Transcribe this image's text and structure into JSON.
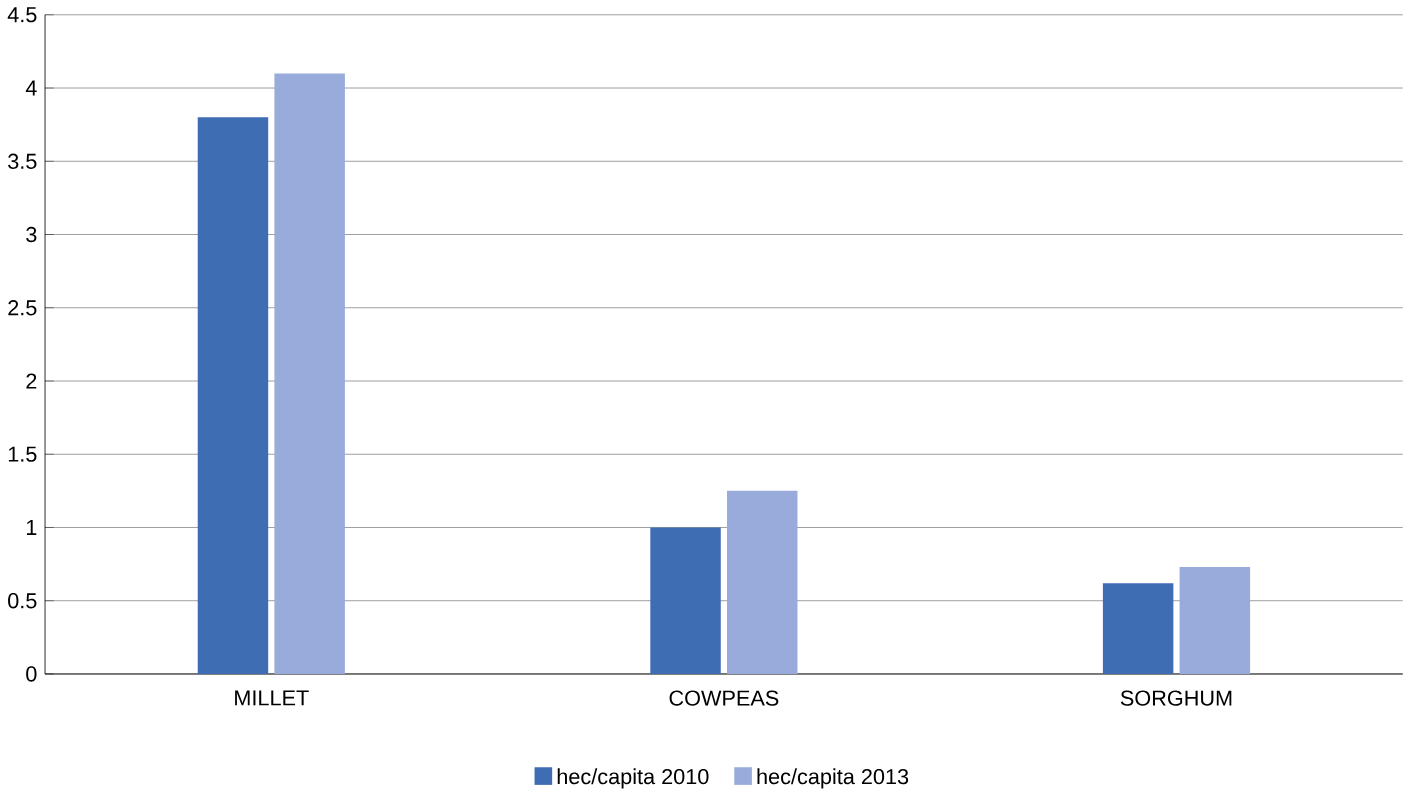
{
  "chart_data": {
    "type": "bar",
    "categories": [
      "MILLET",
      "COWPEAS",
      "SORGHUM"
    ],
    "series": [
      {
        "name": "hec/capita 2010",
        "color": "#3f6db4",
        "values": [
          3.8,
          1.0,
          0.62
        ]
      },
      {
        "name": "hec/capita 2013",
        "color": "#98abdb",
        "values": [
          4.1,
          1.25,
          0.73
        ]
      }
    ],
    "ylim": [
      0,
      4.5
    ],
    "yticks": [
      0,
      0.5,
      1,
      1.5,
      2,
      2.5,
      3,
      3.5,
      4,
      4.5
    ],
    "grid": "y",
    "legend": "bottom"
  }
}
